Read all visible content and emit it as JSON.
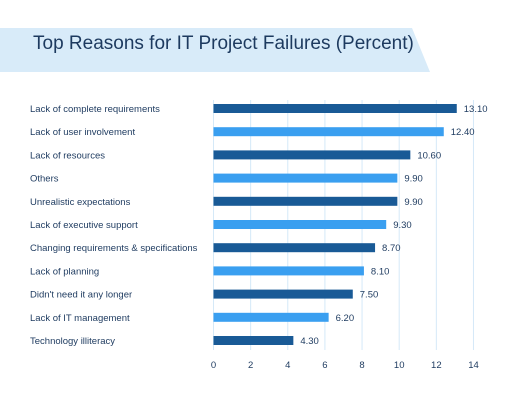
{
  "chart_data": {
    "type": "bar",
    "orientation": "horizontal",
    "title": "Top Reasons for IT Project Failures (Percent)",
    "xlabel": "",
    "ylabel": "",
    "xlim": [
      0,
      14
    ],
    "x_ticks": [
      "0",
      "2",
      "4",
      "6",
      "8",
      "10",
      "12",
      "14"
    ],
    "grid": true,
    "categories": [
      "Lack of complete requirements",
      "Lack of user involvement",
      "Lack of resources",
      "Others",
      "Unrealistic expectations",
      "Lack of executive support",
      "Changing requirements & specifications",
      "Lack of planning",
      "Didn't need it any longer",
      "Lack of IT management",
      "Technology illiteracy"
    ],
    "values": [
      13.1,
      12.4,
      10.6,
      9.9,
      9.9,
      9.3,
      8.7,
      8.1,
      7.5,
      6.2,
      4.3
    ],
    "value_labels": [
      "13.10",
      "12.40",
      "10.60",
      "9.90",
      "9.90",
      "9.30",
      "8.70",
      "8.10",
      "7.50",
      "6.20",
      "4.30"
    ],
    "colors": {
      "bar_dark": "#195a96",
      "bar_light": "#3a9ff0",
      "title_banner": "#d8ebf9",
      "text": "#1d3a5f",
      "grid": "#d5e9f8"
    }
  }
}
